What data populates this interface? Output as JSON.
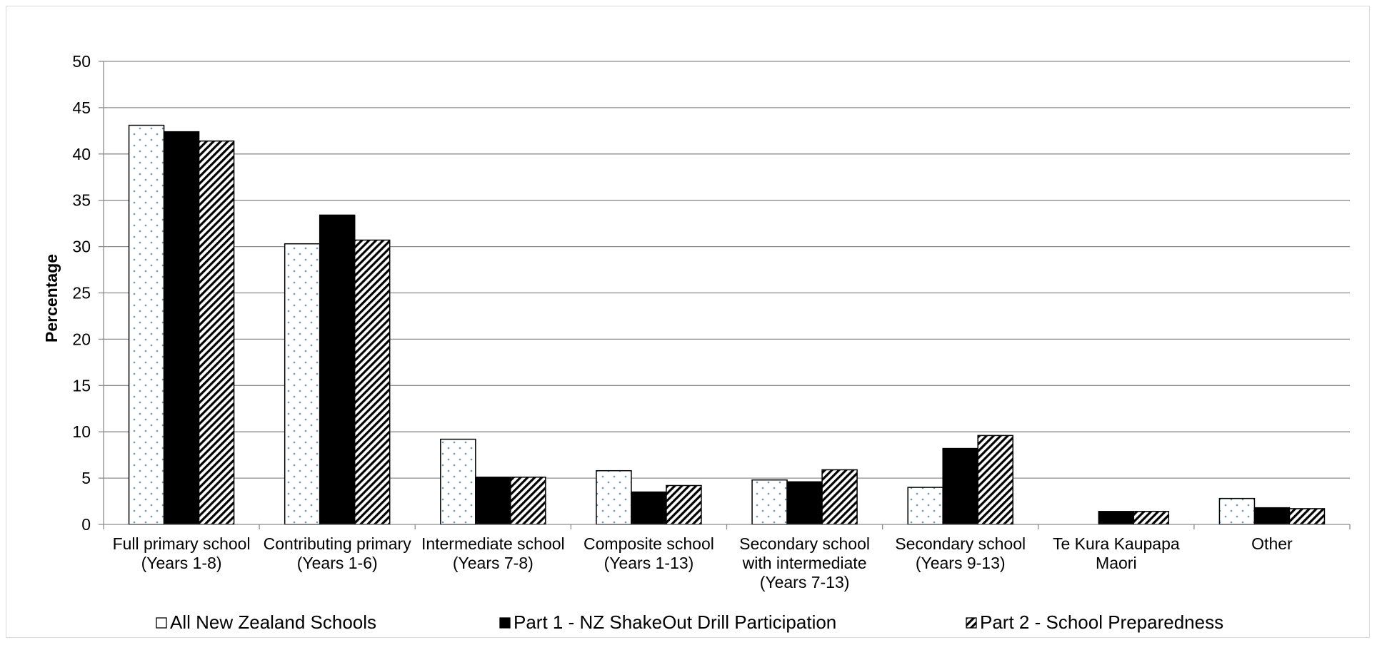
{
  "chart_data": {
    "type": "bar",
    "title": "",
    "xlabel": "",
    "ylabel": "Percentage",
    "ylim": [
      0,
      50
    ],
    "yticks": [
      0,
      5,
      10,
      15,
      20,
      25,
      30,
      35,
      40,
      45,
      50
    ],
    "grid": true,
    "legend_position": "bottom",
    "categories": [
      [
        "Full primary school",
        "(Years 1-8)"
      ],
      [
        "Contributing primary",
        "(Years 1-6)"
      ],
      [
        "Intermediate school",
        "(Years 7-8)"
      ],
      [
        "Composite school",
        "(Years 1-13)"
      ],
      [
        "Secondary school",
        "with intermediate",
        "(Years 7-13)"
      ],
      [
        "Secondary school",
        "(Years 9-13)"
      ],
      [
        "Te Kura Kaupapa",
        "Maori"
      ],
      [
        "Other"
      ]
    ],
    "series": [
      {
        "name": "All New Zealand Schools",
        "pattern": "dots",
        "color": "#5b9bd5",
        "values": [
          43.1,
          30.3,
          9.2,
          5.8,
          4.8,
          4.0,
          0,
          2.8
        ]
      },
      {
        "name": "Part 1 - NZ ShakeOut Drill Participation",
        "pattern": "solid",
        "color": "#000000",
        "values": [
          42.4,
          33.4,
          5.1,
          3.5,
          4.6,
          8.2,
          1.4,
          1.8
        ]
      },
      {
        "name": "Part 2 - School Preparedness",
        "pattern": "hatch",
        "color": "#000000",
        "values": [
          41.4,
          30.7,
          5.1,
          4.2,
          5.9,
          9.6,
          1.4,
          1.7
        ]
      }
    ]
  }
}
